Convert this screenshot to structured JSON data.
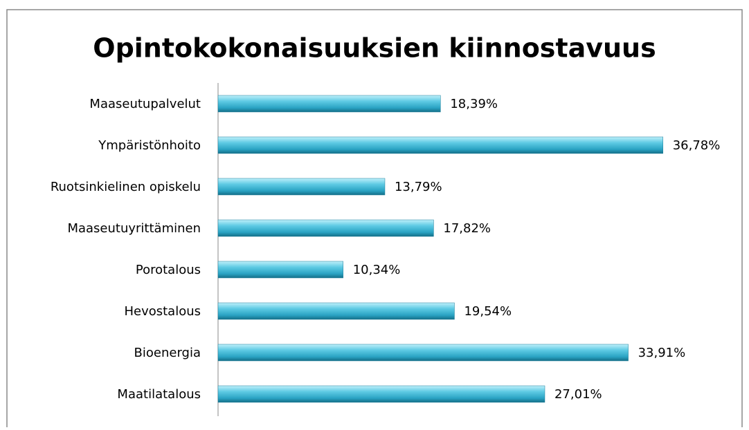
{
  "chart_data": {
    "type": "bar",
    "orientation": "horizontal",
    "title": "Opintokokonaisuuksien kiinnostavuus",
    "categories": [
      "Maaseutupalvelut",
      "Ympäristönhoito",
      "Ruotsinkielinen opiskelu",
      "Maaseutuyrittäminen",
      "Porotalous",
      "Hevostalous",
      "Bioenergia",
      "Maatilatalous"
    ],
    "values": [
      18.39,
      36.78,
      13.79,
      17.82,
      10.34,
      19.54,
      33.91,
      27.01
    ],
    "value_labels": [
      "18,39%",
      "36,78%",
      "13,79%",
      "17,82%",
      "10,34%",
      "19,54%",
      "33,91%",
      "27,01%"
    ],
    "color": "#4bbcd8",
    "xlim": [
      0,
      40
    ]
  }
}
